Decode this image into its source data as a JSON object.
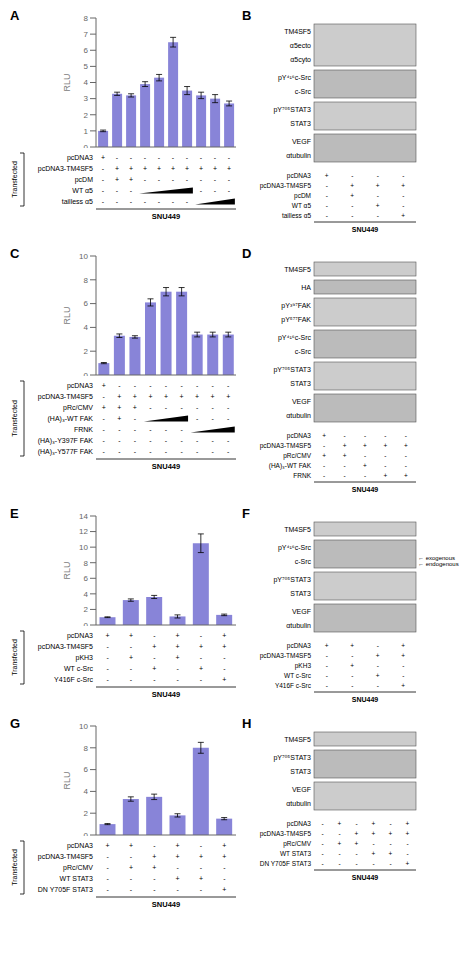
{
  "chart_data": [
    {
      "type": "bar",
      "title": "A",
      "ylabel": "RLU",
      "categories": [
        null,
        null,
        null,
        null,
        null,
        null,
        null,
        null,
        null,
        null
      ],
      "values": [
        1.0,
        3.3,
        3.2,
        3.9,
        4.3,
        6.5,
        3.5,
        3.2,
        3.0,
        2.7
      ],
      "errors": [
        0.05,
        0.1,
        0.1,
        0.15,
        0.2,
        0.3,
        0.25,
        0.2,
        0.25,
        0.15
      ],
      "ylim": [
        0,
        8
      ],
      "yticks": [
        0,
        1,
        2,
        3,
        4,
        5,
        6,
        7,
        8
      ],
      "color": "#8884d8",
      "grid": false,
      "tick_labels": "y",
      "conditions": [
        {
          "label": "pcDNA3",
          "values": [
            "+",
            "-",
            "-",
            "-",
            "-",
            "-",
            "-",
            "-",
            "-",
            "-"
          ]
        },
        {
          "label": "pcDNA3-TM4SF5",
          "values": [
            "-",
            "+",
            "+",
            "+",
            "+",
            "+",
            "+",
            "+",
            "+",
            "+"
          ]
        },
        {
          "label": "pcDM",
          "values": [
            "-",
            "+",
            "+",
            "-",
            "-",
            "-",
            "-",
            "-",
            "-",
            "-"
          ]
        },
        {
          "label": "WT α5",
          "values": [
            "-",
            "-",
            "-",
            "T",
            "T",
            "T",
            "T",
            "-",
            "-",
            "-"
          ]
        },
        {
          "label": "tailless α5",
          "values": [
            "-",
            "-",
            "-",
            "-",
            "-",
            "-",
            "-",
            "T",
            "T",
            "T"
          ]
        }
      ],
      "group_label": "Transfected",
      "cell_line": "SNU449"
    },
    {
      "type": "blot",
      "title": "B",
      "groups": [
        {
          "proteins": [
            "TM4SF5",
            "α5ecto",
            "α5cyto"
          ],
          "color": "#cccccc"
        },
        {
          "proteins": [
            "pY⁴¹⁶c-Src",
            "c-Src"
          ],
          "color": "#bbbbbb"
        },
        {
          "proteins": [
            "pY⁷⁰⁵STAT3",
            "STAT3"
          ],
          "color": "#cccccc"
        },
        {
          "proteins": [
            "VEGF",
            "αtubulin"
          ],
          "color": "#bbbbbb"
        }
      ],
      "conditions": [
        {
          "label": "pcDNA3",
          "values": [
            "+",
            "-",
            "-",
            "-"
          ]
        },
        {
          "label": "pcDNA3-TM4SF5",
          "values": [
            "-",
            "+",
            "+",
            "+"
          ]
        },
        {
          "label": "pcDM",
          "values": [
            "-",
            "+",
            "-",
            "-"
          ]
        },
        {
          "label": "WT α5",
          "values": [
            "-",
            "-",
            "+",
            "-"
          ]
        },
        {
          "label": "tailless α5",
          "values": [
            "-",
            "-",
            "-",
            "+"
          ]
        }
      ],
      "cell_line": "SNU449"
    },
    {
      "type": "bar",
      "title": "C",
      "ylabel": "RLU",
      "categories": [
        null,
        null,
        null,
        null,
        null,
        null,
        null,
        null,
        null
      ],
      "values": [
        1.0,
        3.3,
        3.2,
        6.1,
        7.0,
        7.0,
        3.4,
        3.4,
        3.4
      ],
      "errors": [
        0.05,
        0.15,
        0.1,
        0.3,
        0.35,
        0.35,
        0.2,
        0.2,
        0.2
      ],
      "ylim": [
        0,
        10
      ],
      "yticks": [
        0,
        2,
        4,
        6,
        8,
        10
      ],
      "color": "#8884d8",
      "grid": false,
      "tick_labels": "y",
      "conditions": [
        {
          "label": "pcDNA3",
          "values": [
            "+",
            "-",
            "-",
            "-",
            "-",
            "-",
            "-",
            "-",
            "-"
          ]
        },
        {
          "label": "pcDNA3-TM4SF5",
          "values": [
            "-",
            "+",
            "+",
            "+",
            "+",
            "+",
            "+",
            "+",
            "+"
          ]
        },
        {
          "label": "pRc/CMV",
          "values": [
            "+",
            "+",
            "+",
            "-",
            "-",
            "-",
            "-",
            "-",
            "-"
          ]
        },
        {
          "label": "(HA)₃-WT FAK",
          "values": [
            "-",
            "+",
            "-",
            "T",
            "T",
            "T",
            "-",
            "-",
            "-"
          ]
        },
        {
          "label": "FRNK",
          "values": [
            "-",
            "-",
            "-",
            "-",
            "-",
            "-",
            "T",
            "T",
            "T"
          ]
        },
        {
          "label": "(HA)₃-Y397F FAK",
          "values": [
            "-",
            "-",
            "-",
            "-",
            "-",
            "-",
            "-",
            "-",
            "-"
          ]
        },
        {
          "label": "(HA)₃-Y577F FAK",
          "values": [
            "-",
            "-",
            "-",
            "-",
            "-",
            "-",
            "-",
            "-",
            "-"
          ]
        }
      ],
      "group_label": "Transfected",
      "cell_line": "SNU449"
    },
    {
      "type": "blot",
      "title": "D",
      "groups": [
        {
          "proteins": [
            "TM4SF5"
          ],
          "color": "#cccccc"
        },
        {
          "proteins": [
            "HA"
          ],
          "color": "#bbbbbb"
        },
        {
          "proteins": [
            "pY³⁹⁷FAK",
            "pY⁵⁷⁷FAK"
          ],
          "color": "#cccccc"
        },
        {
          "proteins": [
            "pY⁴¹⁶c-Src",
            "c-Src"
          ],
          "color": "#bbbbbb"
        },
        {
          "proteins": [
            "pY⁷⁰⁵STAT3",
            "STAT3"
          ],
          "color": "#cccccc"
        },
        {
          "proteins": [
            "VEGF",
            "αtubulin"
          ],
          "color": "#bbbbbb"
        }
      ],
      "conditions": [
        {
          "label": "pcDNA3",
          "values": [
            "+",
            "-",
            "-",
            "-",
            "-"
          ]
        },
        {
          "label": "pcDNA3-TM4SF5",
          "values": [
            "-",
            "+",
            "+",
            "+",
            "+"
          ]
        },
        {
          "label": "pRc/CMV",
          "values": [
            "+",
            "+",
            "-",
            "-",
            "-"
          ]
        },
        {
          "label": "(HA)₃-WT FAK",
          "values": [
            "-",
            "-",
            "+",
            "-",
            "-"
          ]
        },
        {
          "label": "FRNK",
          "values": [
            "-",
            "-",
            "-",
            "+",
            "+"
          ]
        }
      ],
      "cell_line": "SNU449"
    },
    {
      "type": "bar",
      "title": "E",
      "ylabel": "RLU",
      "categories": [
        null,
        null,
        null,
        null,
        null,
        null
      ],
      "values": [
        1.0,
        3.2,
        3.6,
        1.1,
        10.5,
        1.3
      ],
      "errors": [
        0.05,
        0.15,
        0.2,
        0.2,
        1.2,
        0.1
      ],
      "ylim": [
        0,
        14
      ],
      "yticks": [
        0,
        2,
        4,
        6,
        8,
        10,
        12,
        14
      ],
      "color": "#8884d8",
      "grid": false,
      "tick_labels": "y",
      "conditions": [
        {
          "label": "pcDNA3",
          "values": [
            "+",
            "+",
            "-",
            "+",
            "-",
            "+"
          ]
        },
        {
          "label": "pcDNA3-TM4SF5",
          "values": [
            "-",
            "-",
            "+",
            "+",
            "+",
            "+"
          ]
        },
        {
          "label": "pKH3",
          "values": [
            "-",
            "+",
            "-",
            "+",
            "-",
            "-"
          ]
        },
        {
          "label": "WT c-Src",
          "values": [
            "-",
            "-",
            "+",
            "-",
            "+",
            "-"
          ]
        },
        {
          "label": "Y416F c-Src",
          "values": [
            "-",
            "-",
            "-",
            "-",
            "-",
            "+"
          ]
        }
      ],
      "group_label": "Transfected",
      "cell_line": "SNU449"
    },
    {
      "type": "blot",
      "title": "F",
      "groups": [
        {
          "proteins": [
            "TM4SF5"
          ],
          "color": "#cccccc"
        },
        {
          "proteins": [
            "pY⁴¹⁶c-Src",
            "c-Src"
          ],
          "color": "#bbbbbb"
        },
        {
          "proteins": [
            "pY⁷⁰⁵STAT3",
            "STAT3"
          ],
          "color": "#cccccc"
        },
        {
          "proteins": [
            "VEGF",
            "αtubulin"
          ],
          "color": "#bbbbbb"
        }
      ],
      "conditions": [
        {
          "label": "pcDNA3",
          "values": [
            "+",
            "+",
            "-",
            "+"
          ]
        },
        {
          "label": "pcDNA3-TM4SF5",
          "values": [
            "-",
            "-",
            "+",
            "+"
          ]
        },
        {
          "label": "pKH3",
          "values": [
            "-",
            "+",
            "-",
            "-"
          ]
        },
        {
          "label": "WT c-Src",
          "values": [
            "-",
            "-",
            "+",
            "-"
          ]
        },
        {
          "label": "Y416F c-Src",
          "values": [
            "-",
            "-",
            "-",
            "+"
          ]
        }
      ],
      "cell_line": "SNU449",
      "annotations": [
        {
          "label": "← exogenous",
          "protein": "c-Src"
        },
        {
          "label": "← endogenous",
          "protein": "c-Src"
        }
      ]
    },
    {
      "type": "bar",
      "title": "G",
      "ylabel": "RLU",
      "categories": [
        null,
        null,
        null,
        null,
        null,
        null
      ],
      "values": [
        1.0,
        3.3,
        3.5,
        1.8,
        8.0,
        1.5
      ],
      "errors": [
        0.05,
        0.2,
        0.25,
        0.15,
        0.5,
        0.1
      ],
      "ylim": [
        0,
        10
      ],
      "yticks": [
        0,
        2,
        4,
        6,
        8,
        10
      ],
      "color": "#8884d8",
      "grid": false,
      "tick_labels": "y",
      "conditions": [
        {
          "label": "pcDNA3",
          "values": [
            "+",
            "+",
            "-",
            "+",
            "-",
            "+"
          ]
        },
        {
          "label": "pcDNA3-TM4SF5",
          "values": [
            "-",
            "-",
            "+",
            "+",
            "+",
            "+"
          ]
        },
        {
          "label": "pRc/CMV",
          "values": [
            "-",
            "+",
            "+",
            "-",
            "-",
            "-"
          ]
        },
        {
          "label": "WT STAT3",
          "values": [
            "-",
            "-",
            "-",
            "+",
            "+",
            "-"
          ]
        },
        {
          "label": "DN Y705F STAT3",
          "values": [
            "-",
            "-",
            "-",
            "-",
            "-",
            "+"
          ]
        }
      ],
      "group_label": "Transfected",
      "cell_line": "SNU449"
    },
    {
      "type": "blot",
      "title": "H",
      "groups": [
        {
          "proteins": [
            "TM4SF5"
          ],
          "color": "#cccccc"
        },
        {
          "proteins": [
            "pY⁷⁰⁵STAT3",
            "STAT3"
          ],
          "color": "#bbbbbb"
        },
        {
          "proteins": [
            "VEGF",
            "αtubulin"
          ],
          "color": "#cccccc"
        }
      ],
      "conditions": [
        {
          "label": "pcDNA3",
          "values": [
            "-",
            "+",
            "-",
            "+",
            "-",
            "+"
          ]
        },
        {
          "label": "pcDNA3-TM4SF5",
          "values": [
            "-",
            "-",
            "+",
            "+",
            "+",
            "+"
          ]
        },
        {
          "label": "pRc/CMV",
          "values": [
            "-",
            "+",
            "+",
            "-",
            "-",
            "-"
          ]
        },
        {
          "label": "WT STAT3",
          "values": [
            "-",
            "-",
            "-",
            "+",
            "+",
            "-"
          ]
        },
        {
          "label": "DN Y705F STAT3",
          "values": [
            "-",
            "-",
            "-",
            "-",
            "-",
            "+"
          ]
        }
      ],
      "cell_line": "SNU449"
    }
  ]
}
